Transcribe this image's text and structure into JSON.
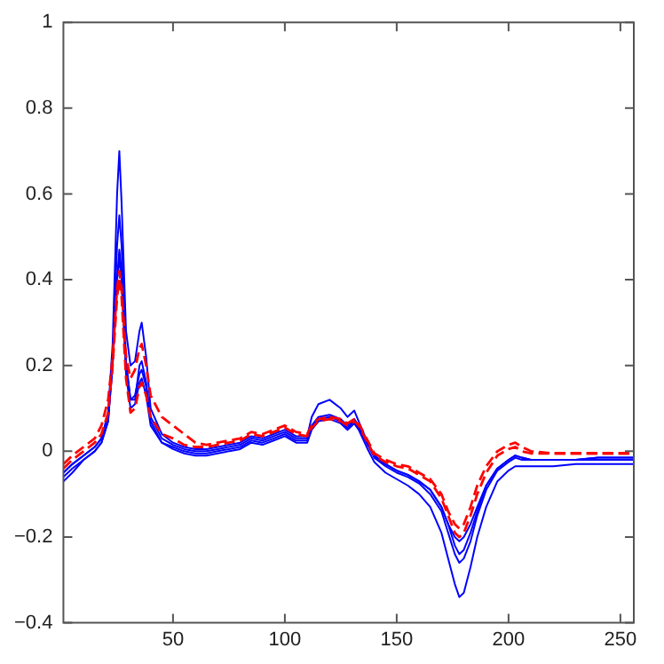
{
  "chart_data": {
    "type": "line",
    "x": [
      1,
      5,
      10,
      15,
      18,
      21,
      23,
      25,
      26,
      27,
      29,
      31,
      33,
      35,
      36,
      38,
      40,
      45,
      50,
      55,
      60,
      65,
      70,
      80,
      85,
      90,
      95,
      100,
      105,
      110,
      112,
      115,
      120,
      125,
      128,
      131,
      133,
      137,
      140,
      145,
      150,
      155,
      160,
      165,
      170,
      173,
      176,
      178,
      180,
      183,
      186,
      190,
      195,
      200,
      203,
      206,
      210,
      220,
      230,
      240,
      250,
      256
    ],
    "xlim": [
      1,
      256
    ],
    "xticks": [
      50,
      100,
      150,
      200,
      250
    ],
    "ylim": [
      -0.4,
      1
    ],
    "yticks": [
      {
        "value": -0.4,
        "label": "−0.4"
      },
      {
        "value": -0.2,
        "label": "−0.2"
      },
      0,
      0.2,
      0.4,
      0.6,
      0.8,
      1
    ],
    "grid": false,
    "legend": false,
    "marker": "none",
    "series": [
      {
        "color": "#ff0000",
        "line_style": "dashed",
        "values": [
          -0.04,
          -0.02,
          0.0,
          0.02,
          0.04,
          0.09,
          0.2,
          0.36,
          0.4,
          0.36,
          0.17,
          0.09,
          0.1,
          0.15,
          0.16,
          0.13,
          0.08,
          0.04,
          0.03,
          0.015,
          0.01,
          0.01,
          0.015,
          0.025,
          0.04,
          0.035,
          0.045,
          0.055,
          0.04,
          0.035,
          0.055,
          0.07,
          0.075,
          0.07,
          0.06,
          0.07,
          0.06,
          0.02,
          -0.01,
          -0.025,
          -0.035,
          -0.04,
          -0.055,
          -0.07,
          -0.11,
          -0.15,
          -0.19,
          -0.2,
          -0.19,
          -0.15,
          -0.1,
          -0.05,
          -0.01,
          0.005,
          0.01,
          0.0,
          -0.005,
          -0.005,
          -0.005,
          -0.005,
          -0.005,
          -0.005
        ]
      },
      {
        "color": "#ff0000",
        "line_style": "dashed",
        "values": [
          -0.03,
          -0.01,
          0.01,
          0.03,
          0.06,
          0.12,
          0.22,
          0.38,
          0.42,
          0.38,
          0.22,
          0.17,
          0.19,
          0.24,
          0.25,
          0.2,
          0.13,
          0.08,
          0.06,
          0.04,
          0.02,
          0.015,
          0.02,
          0.03,
          0.045,
          0.04,
          0.05,
          0.06,
          0.045,
          0.04,
          0.06,
          0.075,
          0.08,
          0.075,
          0.065,
          0.075,
          0.065,
          0.025,
          -0.005,
          -0.02,
          -0.03,
          -0.035,
          -0.05,
          -0.065,
          -0.1,
          -0.14,
          -0.17,
          -0.18,
          -0.17,
          -0.13,
          -0.08,
          -0.035,
          0.0,
          0.015,
          0.02,
          0.01,
          0.0,
          -0.005,
          -0.005,
          -0.005,
          -0.005,
          -0.005
        ]
      },
      {
        "color": "#0000ff",
        "line_style": "solid",
        "values": [
          -0.05,
          -0.03,
          -0.01,
          0.01,
          0.03,
          0.08,
          0.2,
          0.4,
          0.47,
          0.42,
          0.2,
          0.12,
          0.13,
          0.18,
          0.19,
          0.15,
          0.08,
          0.03,
          0.015,
          0.005,
          0.0,
          0.0,
          0.005,
          0.015,
          0.03,
          0.025,
          0.035,
          0.045,
          0.03,
          0.03,
          0.06,
          0.08,
          0.085,
          0.075,
          0.06,
          0.075,
          0.06,
          0.02,
          -0.01,
          -0.03,
          -0.045,
          -0.055,
          -0.07,
          -0.09,
          -0.13,
          -0.17,
          -0.22,
          -0.24,
          -0.23,
          -0.19,
          -0.14,
          -0.08,
          -0.04,
          -0.02,
          -0.01,
          -0.015,
          -0.02,
          -0.02,
          -0.02,
          -0.015,
          -0.015,
          -0.015
        ]
      },
      {
        "color": "#0000ff",
        "line_style": "solid",
        "values": [
          -0.06,
          -0.04,
          -0.02,
          0.0,
          0.02,
          0.07,
          0.22,
          0.48,
          0.55,
          0.48,
          0.21,
          0.12,
          0.12,
          0.2,
          0.21,
          0.16,
          0.07,
          0.02,
          0.01,
          0.0,
          -0.005,
          -0.005,
          0.0,
          0.01,
          0.025,
          0.02,
          0.03,
          0.04,
          0.025,
          0.025,
          0.055,
          0.075,
          0.08,
          0.07,
          0.055,
          0.07,
          0.055,
          0.015,
          -0.015,
          -0.035,
          -0.05,
          -0.06,
          -0.075,
          -0.1,
          -0.14,
          -0.19,
          -0.24,
          -0.26,
          -0.25,
          -0.21,
          -0.15,
          -0.09,
          -0.045,
          -0.025,
          -0.015,
          -0.02,
          -0.02,
          -0.02,
          -0.02,
          -0.02,
          -0.02,
          -0.02
        ]
      },
      {
        "color": "#0000ff",
        "line_style": "solid",
        "values": [
          -0.05,
          -0.03,
          -0.01,
          0.01,
          0.03,
          0.09,
          0.25,
          0.6,
          0.7,
          0.58,
          0.28,
          0.2,
          0.21,
          0.28,
          0.3,
          0.22,
          0.1,
          0.04,
          0.02,
          0.01,
          0.005,
          0.005,
          0.01,
          0.02,
          0.035,
          0.03,
          0.04,
          0.05,
          0.035,
          0.035,
          0.08,
          0.11,
          0.12,
          0.1,
          0.08,
          0.095,
          0.07,
          0.02,
          -0.01,
          -0.03,
          -0.045,
          -0.055,
          -0.07,
          -0.09,
          -0.13,
          -0.17,
          -0.2,
          -0.21,
          -0.2,
          -0.17,
          -0.13,
          -0.08,
          -0.04,
          -0.02,
          -0.01,
          -0.015,
          -0.02,
          -0.02,
          -0.02,
          -0.015,
          -0.015,
          -0.015
        ]
      },
      {
        "color": "#0000ff",
        "line_style": "solid",
        "values": [
          -0.07,
          -0.05,
          -0.02,
          0.0,
          0.02,
          0.07,
          0.2,
          0.4,
          0.45,
          0.4,
          0.18,
          0.1,
          0.11,
          0.16,
          0.17,
          0.13,
          0.06,
          0.02,
          0.005,
          -0.005,
          -0.01,
          -0.01,
          -0.005,
          0.005,
          0.02,
          0.015,
          0.025,
          0.035,
          0.02,
          0.02,
          0.05,
          0.07,
          0.075,
          0.065,
          0.05,
          0.065,
          0.05,
          0.005,
          -0.025,
          -0.05,
          -0.065,
          -0.08,
          -0.1,
          -0.13,
          -0.19,
          -0.25,
          -0.31,
          -0.34,
          -0.33,
          -0.27,
          -0.2,
          -0.13,
          -0.07,
          -0.045,
          -0.035,
          -0.035,
          -0.035,
          -0.035,
          -0.03,
          -0.03,
          -0.03,
          -0.03
        ]
      }
    ]
  }
}
